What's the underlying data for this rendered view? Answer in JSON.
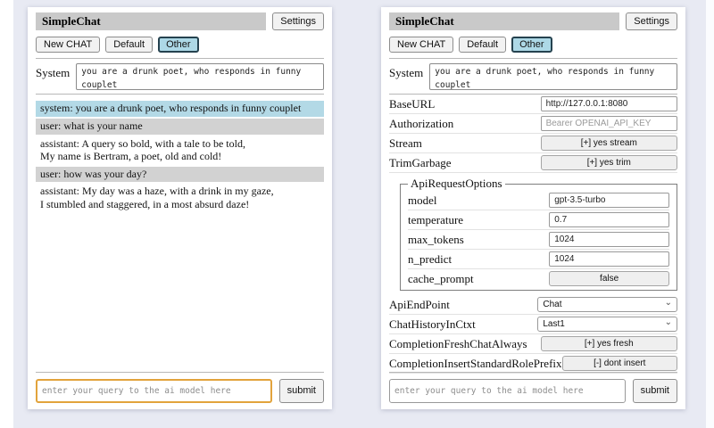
{
  "header": {
    "title": "SimpleChat",
    "settings_label": "Settings",
    "new_chat_label": "New CHAT",
    "tab_default": "Default",
    "tab_other": "Other",
    "selected_tab": "Other"
  },
  "system_prompt": {
    "label": "System",
    "value": "you are a drunk poet, who responds in funny couplet"
  },
  "query": {
    "placeholder": "enter your query to the ai model here",
    "submit_label": "submit"
  },
  "left_panel": {
    "messages": [
      {
        "role": "system",
        "text": "system: you are a drunk poet, who responds in funny couplet"
      },
      {
        "role": "user",
        "text": "user: what is your name"
      },
      {
        "role": "assistant",
        "text": "assistant: A query so bold, with a tale to be told,\nMy name is Bertram, a poet, old and cold!"
      },
      {
        "role": "user",
        "text": "user: how was your day?"
      },
      {
        "role": "assistant",
        "text": "assistant: My day was a haze, with a drink in my gaze,\nI stumbled and staggered, in a most absurd daze!"
      }
    ]
  },
  "right_panel": {
    "settings": {
      "base_url": {
        "label": "BaseURL",
        "value": "http://127.0.0.1:8080"
      },
      "authorization": {
        "label": "Authorization",
        "placeholder": "Bearer OPENAI_API_KEY"
      },
      "stream": {
        "label": "Stream",
        "value": "[+] yes stream"
      },
      "trim_garbage": {
        "label": "TrimGarbage",
        "value": "[+] yes trim"
      },
      "api_request_options": {
        "legend": "ApiRequestOptions",
        "model": {
          "label": "model",
          "value": "gpt-3.5-turbo"
        },
        "temperature": {
          "label": "temperature",
          "value": "0.7"
        },
        "max_tokens": {
          "label": "max_tokens",
          "value": "1024"
        },
        "n_predict": {
          "label": "n_predict",
          "value": "1024"
        },
        "cache_prompt": {
          "label": "cache_prompt",
          "value": "false"
        }
      },
      "api_endpoint": {
        "label": "ApiEndPoint",
        "value": "Chat"
      },
      "chat_history_in_ctxt": {
        "label": "ChatHistoryInCtxt",
        "value": "Last1"
      },
      "completion_fresh_chat_always": {
        "label": "CompletionFreshChatAlways",
        "value": "[+] yes fresh"
      },
      "completion_insert_standard_role_prefix": {
        "label": "CompletionInsertStandardRolePrefix",
        "value": "[-] dont insert"
      }
    }
  },
  "colors": {
    "page_bg": "#e8eaf3",
    "title_bar_bg": "#c9c9c9",
    "selected_tab_bg": "#add8e6",
    "system_msg_bg": "#b3d9e6",
    "user_msg_bg": "#d2d2d2",
    "query_focus_border": "#e2a33c"
  }
}
